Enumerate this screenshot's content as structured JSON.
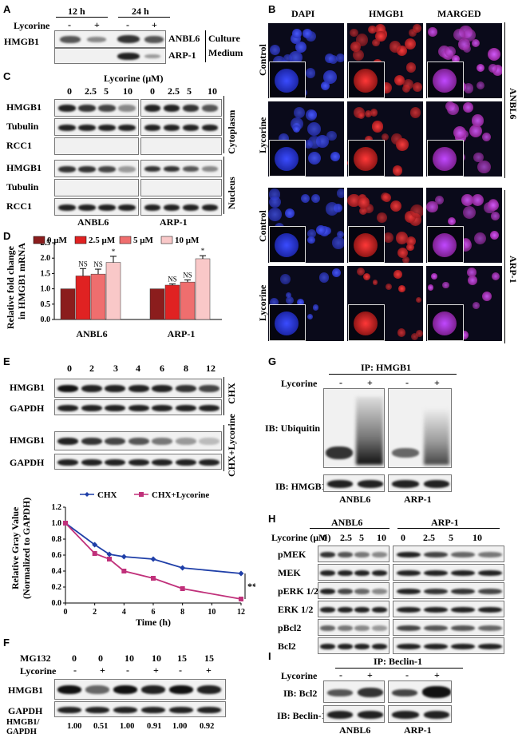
{
  "panels": {
    "A": {
      "letter": "A",
      "time1": "12 h",
      "time2": "24 h",
      "row_label": "Lycorine",
      "signs": [
        "-",
        "+",
        "-",
        "+"
      ],
      "protein": "HMGB1",
      "cell1": "ANBL6",
      "cell2": "ARP-1",
      "bracket_label_1": "Culture",
      "bracket_label_2": "Medium"
    },
    "B": {
      "letter": "B",
      "columns": [
        "DAPI",
        "HMGB1",
        "MARGED"
      ],
      "rows": [
        "Control",
        "Lycorine",
        "Control",
        "Lycorine"
      ],
      "cell1": "ANBL6",
      "cell2": "ARP-1"
    },
    "C": {
      "letter": "C",
      "header": "Lycorine (μM)",
      "doses": [
        "0",
        "2.5",
        "5",
        "10",
        "0",
        "2.5",
        "5",
        "10"
      ],
      "rows": [
        "HMGB1",
        "Tubulin",
        "RCC1",
        "HMGB1",
        "Tubulin",
        "RCC1"
      ],
      "frac1": "Cytoplasm",
      "frac2": "Nucleus",
      "cell1": "ANBL6",
      "cell2": "ARP-1"
    },
    "D": {
      "letter": "D",
      "ylabel1": "Relative fold change",
      "ylabel2": "in HMGB1 mRNA",
      "legend": [
        "0 μM",
        "2.5 μM",
        "5 μM",
        "10 μM"
      ],
      "sig": [
        "NS",
        "NS",
        "*",
        "NS",
        "NS",
        "*"
      ],
      "yticks": [
        "0.0",
        "0.5",
        "1.0",
        "1.5",
        "2.0",
        "2.5"
      ],
      "groups": [
        "ANBL6",
        "ARP-1"
      ]
    },
    "E": {
      "letter": "E",
      "times": [
        "0",
        "2",
        "3",
        "4",
        "6",
        "8",
        "12"
      ],
      "rows": [
        "HMGB1",
        "GAPDH",
        "HMGB1",
        "GAPDH"
      ],
      "cond1": "CHX",
      "cond2": "CHX+Lycorine"
    },
    "F": {
      "letter": "F",
      "row1_label": "MG132",
      "mg132": [
        "0",
        "0",
        "10",
        "10",
        "15",
        "15"
      ],
      "row2_label": "Lycorine",
      "signs": [
        "-",
        "+",
        "-",
        "+",
        "-",
        "+"
      ],
      "rows": [
        "HMGB1",
        "GAPDH"
      ],
      "ratio_label_1": "HMGB1/",
      "ratio_label_2": "GAPDH",
      "ratios": [
        "1.00",
        "0.51",
        "1.00",
        "0.91",
        "1.00",
        "0.92"
      ]
    },
    "G": {
      "letter": "G",
      "title": "IP: HMGB1",
      "row_label": "Lycorine",
      "signs": [
        "-",
        "+",
        "-",
        "+"
      ],
      "ib1": "IB: Ubiquitin",
      "ib2": "IB: HMGB1",
      "cell1": "ANBL6",
      "cell2": "ARP-1"
    },
    "H": {
      "letter": "H",
      "cell1": "ANBL6",
      "cell2": "ARP-1",
      "row_label": "Lycorine (μM)",
      "doses": [
        "0",
        "2.5",
        "5",
        "10",
        "0",
        "2.5",
        "5",
        "10"
      ],
      "rows": [
        "pMEK",
        "MEK",
        "pERK 1/2",
        "ERK 1/2",
        "pBcl2",
        "Bcl2"
      ]
    },
    "I": {
      "letter": "I",
      "title": "IP: Beclin-1",
      "row_label": "Lycorine",
      "signs": [
        "-",
        "+",
        "-",
        "+"
      ],
      "ib1": "IB: Bcl2",
      "ib2": "IB: Beclin-1",
      "cell1": "ANBL6",
      "cell2": "ARP-1"
    }
  },
  "chart_data": [
    {
      "type": "bar",
      "ylabel": "Relative fold change in HMGB1 mRNA",
      "categories": [
        "ANBL6",
        "ARP-1"
      ],
      "series": [
        {
          "name": "0 μM",
          "values": [
            1.0,
            1.0
          ],
          "err": [
            0,
            0
          ]
        },
        {
          "name": "2.5 μM",
          "values": [
            1.42,
            1.12
          ],
          "err": [
            0.24,
            0.04
          ]
        },
        {
          "name": "5 μM",
          "values": [
            1.48,
            1.22
          ],
          "err": [
            0.16,
            0.07
          ]
        },
        {
          "name": "10 μM",
          "values": [
            1.86,
            1.98
          ],
          "err": [
            0.2,
            0.1
          ]
        }
      ],
      "ylim": [
        0,
        2.5
      ],
      "colors": [
        "#8b1d1d",
        "#e02222",
        "#ef6e6e",
        "#f9c8c8"
      ],
      "legend_position": "top"
    },
    {
      "type": "line",
      "xlabel": "Time (h)",
      "ylabel": "Relative Gray Value (Normalized to GAPDH)",
      "x": [
        0,
        2,
        3,
        4,
        6,
        8,
        12
      ],
      "series": [
        {
          "name": "CHX",
          "values": [
            1.0,
            0.73,
            0.61,
            0.58,
            0.55,
            0.44,
            0.37
          ],
          "color": "#1f3fa8"
        },
        {
          "name": "CHX+Lycorine",
          "values": [
            1.0,
            0.62,
            0.55,
            0.4,
            0.31,
            0.18,
            0.05
          ],
          "color": "#c0307a"
        }
      ],
      "xticks": [
        "0",
        "2",
        "4",
        "6",
        "8",
        "10",
        "12"
      ],
      "yticks": [
        "0.0",
        "0.2",
        "0.4",
        "0.6",
        "0.8",
        "1.0",
        "1.2"
      ],
      "xlim": [
        0,
        12
      ],
      "ylim": [
        0,
        1.2
      ],
      "annotation": "**",
      "legend_position": "top"
    }
  ]
}
